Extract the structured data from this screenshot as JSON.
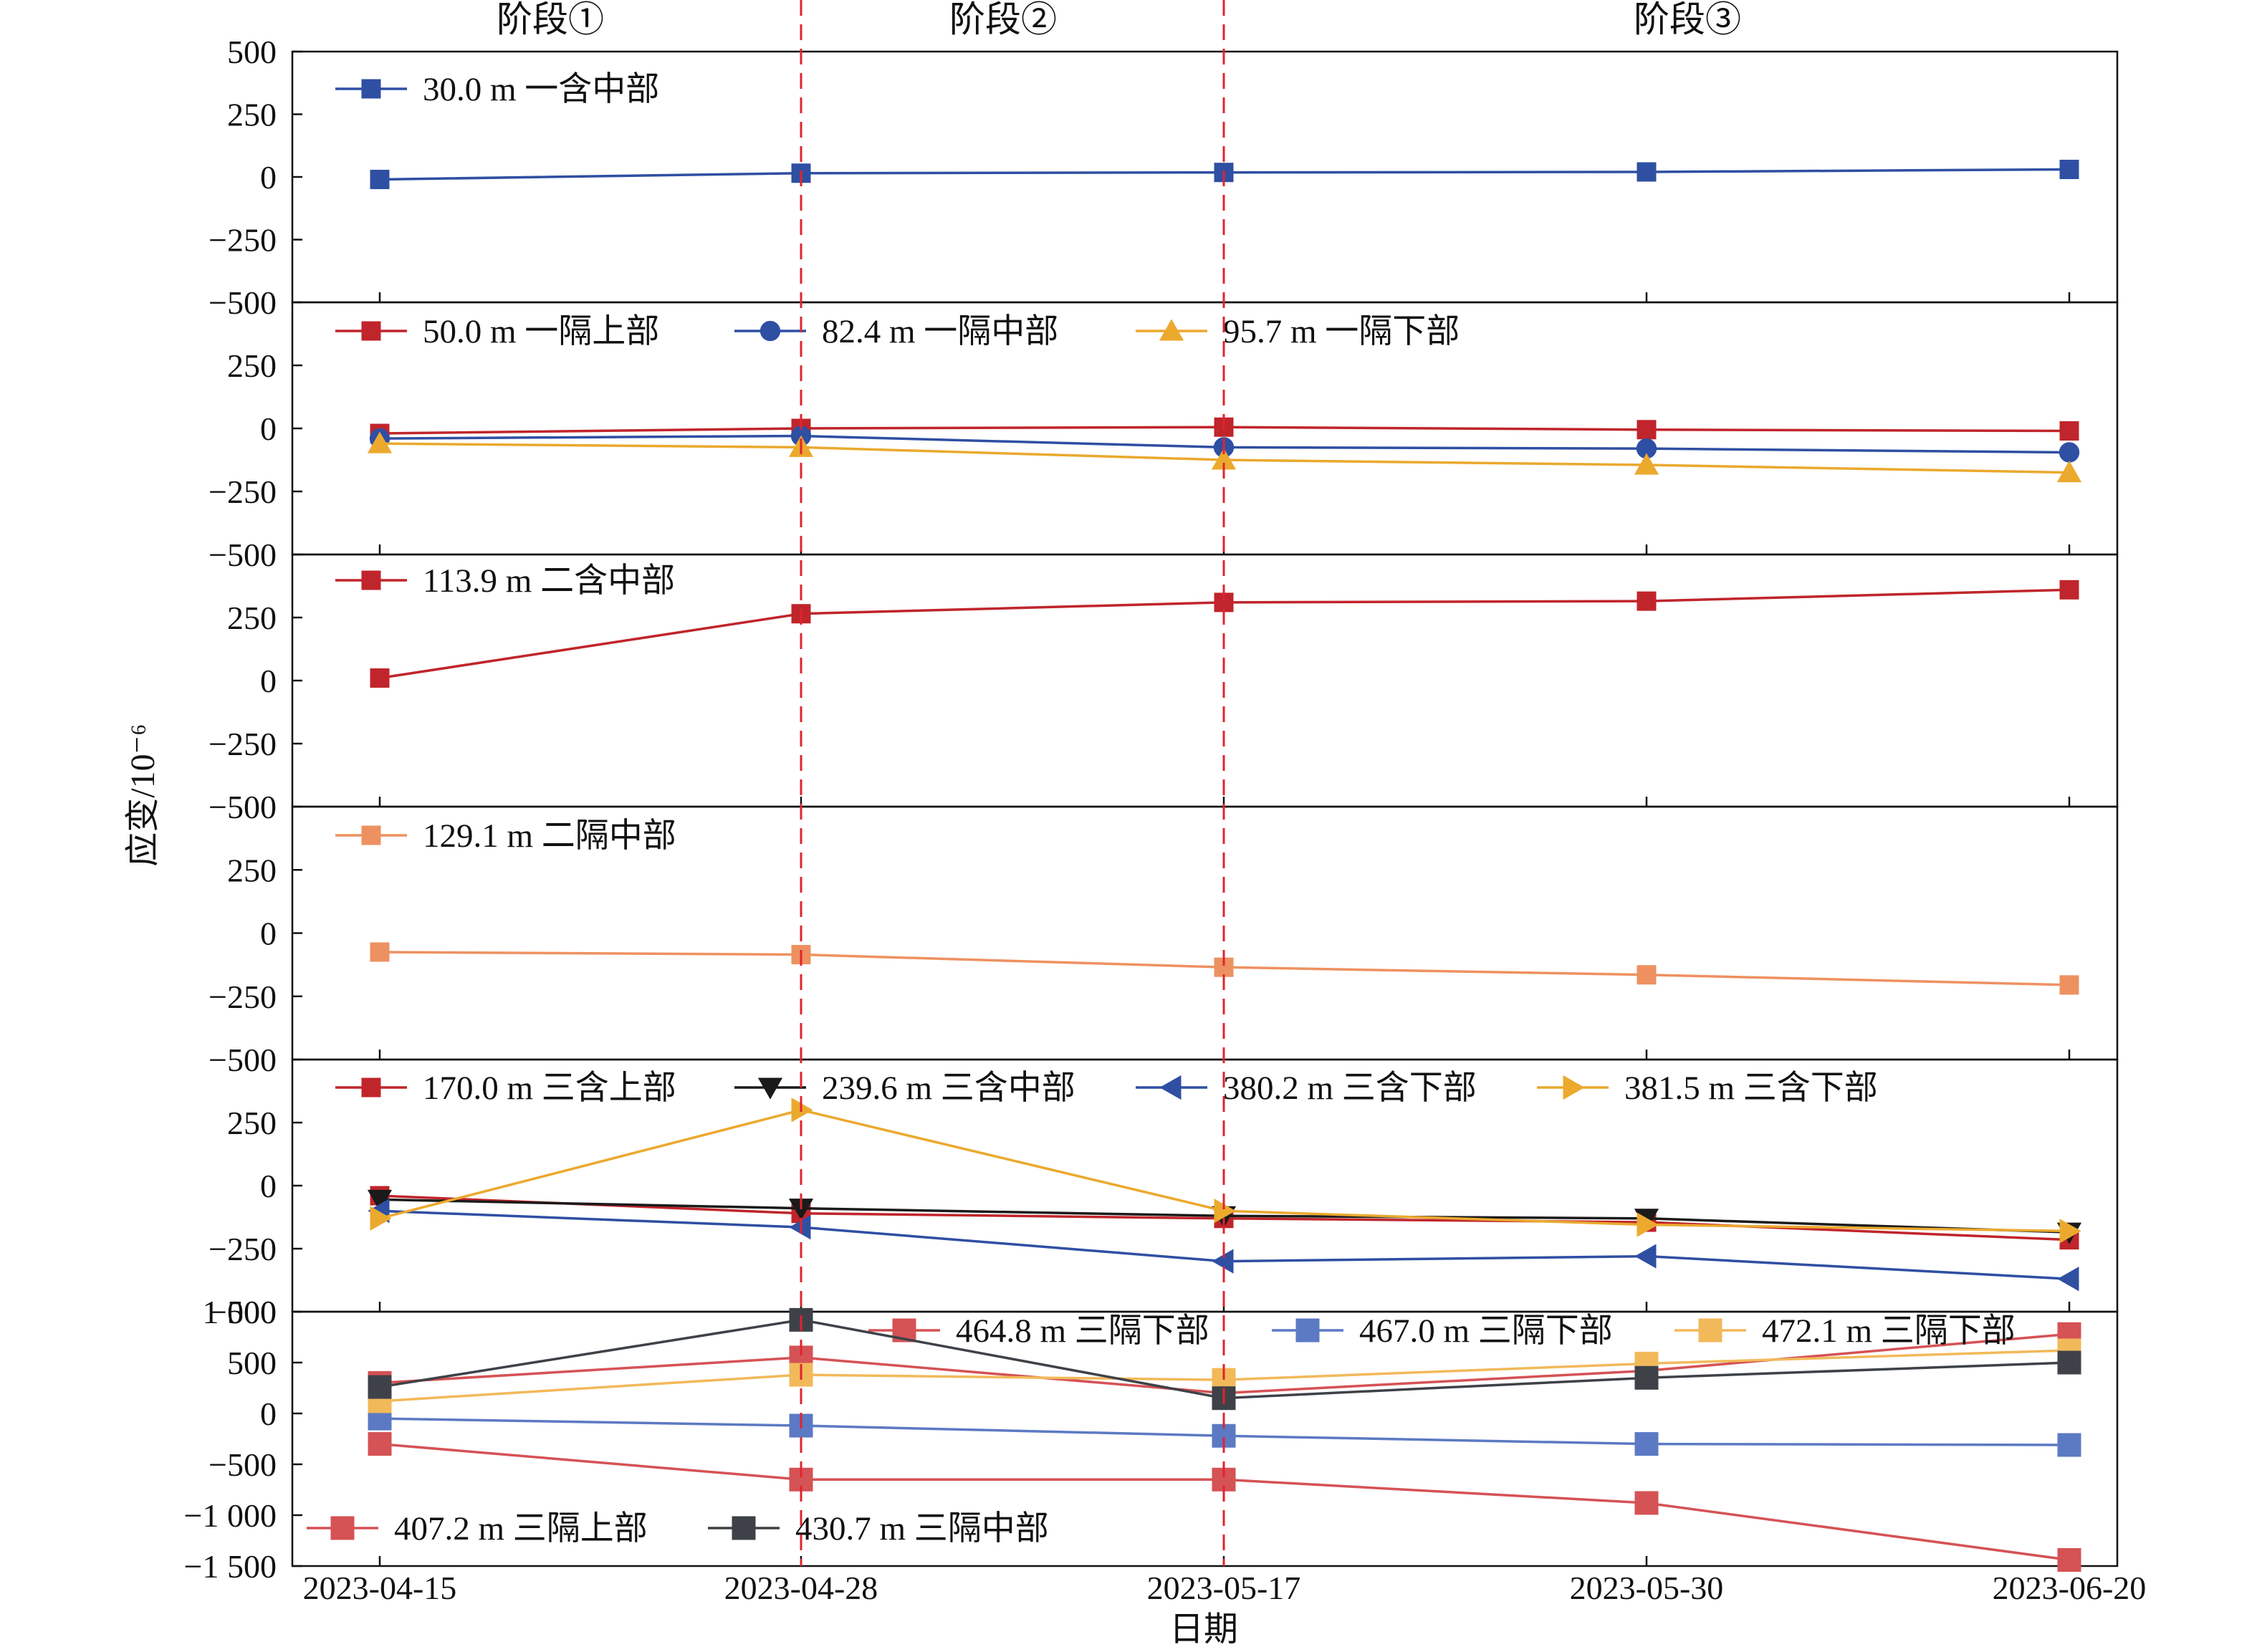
{
  "chart_data": {
    "type": "line",
    "xlabel": "日期",
    "ylabel": "应变/10⁻⁶",
    "x": [
      "2023-04-15",
      "2023-04-28",
      "2023-05-17",
      "2023-05-30",
      "2023-06-20"
    ],
    "stage_markers": [
      "2023-04-28",
      "2023-05-17"
    ],
    "stages": [
      "阶段①",
      "阶段②",
      "阶段③"
    ],
    "grid": false,
    "panels": [
      {
        "ylim": [
          -500,
          500
        ],
        "yticks": [
          500,
          250,
          0,
          -250,
          -500
        ],
        "ytick_labels": [
          "500",
          "250",
          "0",
          "−250",
          "−500"
        ],
        "legend_placement": "top-left",
        "series": [
          {
            "name": "30.0 m 一含中部",
            "color": "#2F4FA3",
            "marker": "square",
            "values": [
              -10,
              15,
              18,
              20,
              30
            ]
          }
        ]
      },
      {
        "ylim": [
          -500,
          500
        ],
        "yticks": [
          250,
          0,
          -250,
          -500
        ],
        "ytick_labels": [
          "250",
          "0",
          "−250",
          "−500"
        ],
        "legend_placement": "top",
        "series": [
          {
            "name": "50.0 m 一隔上部",
            "color": "#C0252B",
            "marker": "square",
            "values": [
              -20,
              0,
              5,
              -5,
              -10
            ]
          },
          {
            "name": "82.4 m 一隔中部",
            "color": "#2F4FA3",
            "marker": "circle",
            "values": [
              -40,
              -30,
              -75,
              -80,
              -95
            ]
          },
          {
            "name": "95.7 m 一隔下部",
            "color": "#EBA92E",
            "marker": "triangle-up",
            "values": [
              -60,
              -75,
              -125,
              -145,
              -175
            ]
          }
        ]
      },
      {
        "ylim": [
          -500,
          500
        ],
        "yticks": [
          250,
          0,
          -250,
          -500
        ],
        "ytick_labels": [
          "250",
          "0",
          "−250",
          "−500"
        ],
        "legend_placement": "top-left",
        "series": [
          {
            "name": "113.9 m 二含中部",
            "color": "#C0252B",
            "marker": "square",
            "values": [
              10,
              265,
              310,
              315,
              360
            ]
          }
        ]
      },
      {
        "ylim": [
          -500,
          500
        ],
        "yticks": [
          250,
          0,
          -250,
          -500
        ],
        "ytick_labels": [
          "250",
          "0",
          "−250",
          "−500"
        ],
        "legend_placement": "top-left",
        "series": [
          {
            "name": "129.1 m 二隔中部",
            "color": "#EE9161",
            "marker": "square",
            "values": [
              -75,
              -85,
              -135,
              -165,
              -205
            ]
          }
        ]
      },
      {
        "ylim": [
          -500,
          500
        ],
        "yticks": [
          250,
          0,
          -250,
          -500
        ],
        "ytick_labels": [
          "250",
          "0",
          "−250",
          "−500"
        ],
        "legend_placement": "top",
        "series": [
          {
            "name": "170.0 m 三含上部",
            "color": "#C0252B",
            "marker": "square",
            "values": [
              -40,
              -110,
              -130,
              -145,
              -215
            ]
          },
          {
            "name": "239.6 m 三含中部",
            "color": "#1A1A1A",
            "marker": "triangle-down",
            "values": [
              -55,
              -90,
              -120,
              -130,
              -185
            ]
          },
          {
            "name": "380.2 m 三含下部",
            "color": "#2F4FA3",
            "marker": "triangle-left",
            "values": [
              -100,
              -165,
              -300,
              -280,
              -370
            ]
          },
          {
            "name": "381.5 m 三含下部",
            "color": "#EBA92E",
            "marker": "triangle-right",
            "values": [
              -130,
              300,
              -100,
              -155,
              -180
            ]
          }
        ]
      },
      {
        "ylim": [
          -1500,
          1000
        ],
        "yticks": [
          1000,
          500,
          0,
          -500,
          -1000,
          -1500
        ],
        "ytick_labels": [
          "1 000",
          "500",
          "0",
          "−500",
          "−1 000",
          "−1 500"
        ],
        "legend_placement": "top-right and bottom-left",
        "series": [
          {
            "name": "464.8 m 三隔下部",
            "color": "#D55255",
            "marker": "square",
            "values": [
              300,
              550,
              200,
              420,
              780
            ]
          },
          {
            "name": "467.0 m 三隔下部",
            "color": "#5C79C4",
            "marker": "square",
            "values": [
              -50,
              -120,
              -220,
              -300,
              -310
            ]
          },
          {
            "name": "472.1 m 三隔下部",
            "color": "#F2B95A",
            "marker": "square",
            "values": [
              120,
              380,
              330,
              490,
              620
            ]
          },
          {
            "name": "407.2 m 三隔上部",
            "color": "#D55255",
            "marker": "square",
            "values": [
              -300,
              -650,
              -650,
              -880,
              -1440
            ]
          },
          {
            "name": "430.7 m 三隔中部",
            "color": "#3E4248",
            "marker": "square",
            "values": [
              260,
              920,
              150,
              350,
              500
            ]
          }
        ]
      }
    ]
  }
}
